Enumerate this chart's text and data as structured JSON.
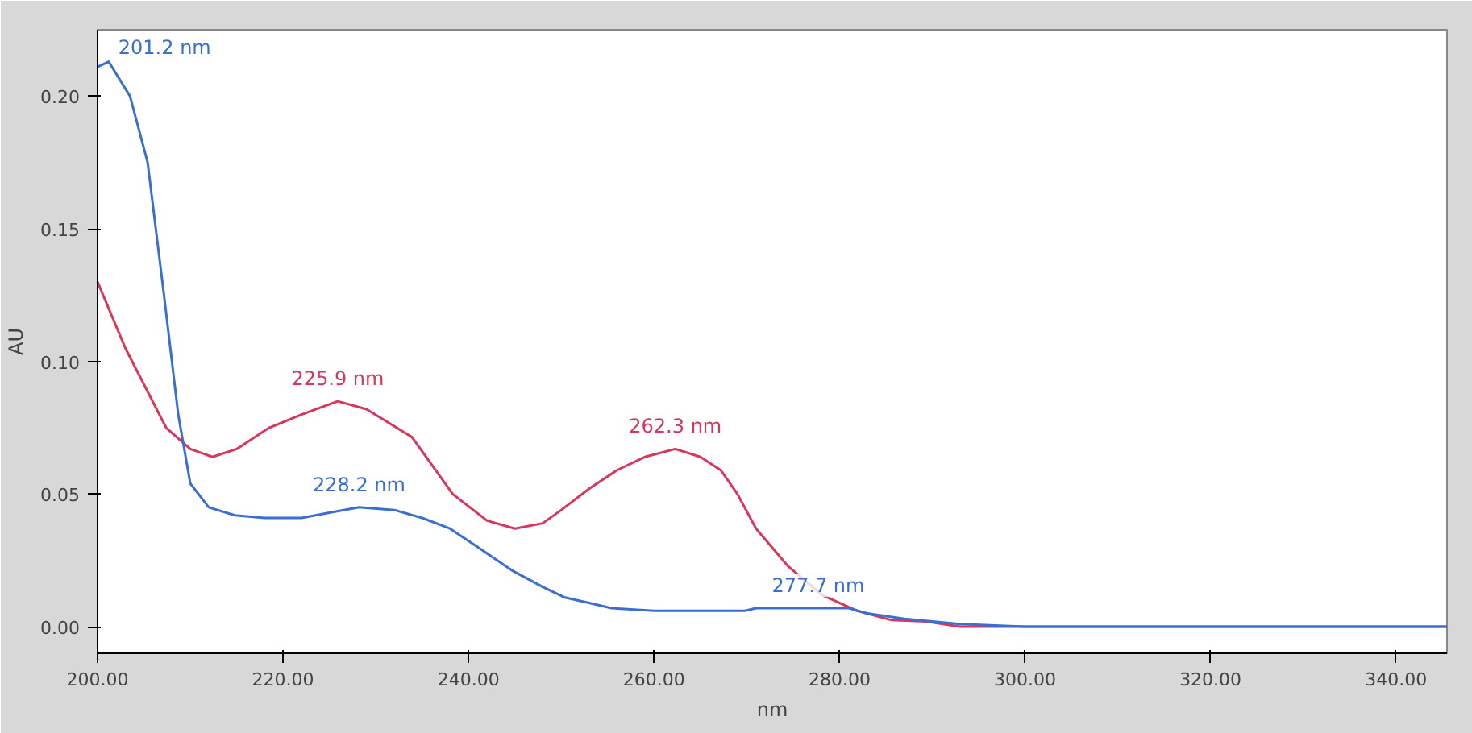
{
  "chart_data": {
    "type": "line",
    "xlabel": "nm",
    "ylabel": "AU",
    "series": [
      {
        "color": "#d8365a",
        "x": [
          200,
          203,
          207.4,
          210,
          212.4,
          215,
          218.5,
          222,
          225.9,
          229,
          233.9,
          238.3,
          242,
          245,
          248,
          250,
          253,
          256,
          259,
          262.3,
          265,
          267.2,
          269,
          271,
          274.4,
          278.1,
          281.9,
          285.6,
          289.3,
          293,
          300,
          320,
          345.5
        ],
        "values": [
          0.13,
          0.105,
          0.075,
          0.067,
          0.064,
          0.067,
          0.075,
          0.08,
          0.085,
          0.082,
          0.0715,
          0.05,
          0.04,
          0.037,
          0.039,
          0.044,
          0.052,
          0.059,
          0.064,
          0.067,
          0.064,
          0.059,
          0.05,
          0.037,
          0.023,
          0.012,
          0.006,
          0.0025,
          0.002,
          0.0,
          0.0,
          0.0,
          0.0
        ]
      },
      {
        "color": "#3a6fd0",
        "x": [
          200,
          201.2,
          203.5,
          205.4,
          207.2,
          208.7,
          210,
          212,
          214.8,
          218,
          222,
          225,
          228.2,
          232,
          235,
          238,
          241,
          244.8,
          248,
          250.4,
          253,
          255.4,
          260,
          265,
          269.8,
          271,
          277.7,
          281,
          283,
          287,
          290,
          293,
          300,
          320,
          345.5
        ],
        "values": [
          0.211,
          0.213,
          0.2,
          0.175,
          0.124,
          0.08,
          0.054,
          0.045,
          0.042,
          0.041,
          0.041,
          0.043,
          0.045,
          0.044,
          0.041,
          0.037,
          0.03,
          0.021,
          0.015,
          0.011,
          0.009,
          0.007,
          0.006,
          0.006,
          0.006,
          0.007,
          0.007,
          0.007,
          0.005,
          0.003,
          0.002,
          0.001,
          0.0,
          0.0,
          0.0
        ]
      }
    ],
    "annotations": [
      {
        "text": "201.2 nm",
        "x": 201.2,
        "y": 0.213
      },
      {
        "text": "225.9 nm",
        "x": 225.9,
        "y": 0.085
      },
      {
        "text": "228.2 nm",
        "x": 228.2,
        "y": 0.045
      },
      {
        "text": "262.3 nm",
        "x": 262.3,
        "y": 0.067
      },
      {
        "text": "277.7 nm",
        "x": 277.7,
        "y": 0.007
      }
    ],
    "xlim": [
      200,
      345.5
    ],
    "ylim": [
      -0.01,
      0.225
    ],
    "xticks": [
      {
        "value": 200,
        "label": "200.00"
      },
      {
        "value": 220,
        "label": "220.00"
      },
      {
        "value": 240,
        "label": "240.00"
      },
      {
        "value": 260,
        "label": "260.00"
      },
      {
        "value": 280,
        "label": "280.00"
      },
      {
        "value": 300,
        "label": "300.00"
      },
      {
        "value": 320,
        "label": "320.00"
      },
      {
        "value": 340,
        "label": "340.00"
      }
    ],
    "yticks": [
      {
        "value": 0,
        "label": "0.00"
      },
      {
        "value": 0.05,
        "label": "0.05"
      },
      {
        "value": 0.1,
        "label": "0.10"
      },
      {
        "value": 0.15,
        "label": "0.15"
      },
      {
        "value": 0.2,
        "label": "0.20"
      }
    ],
    "grid": false,
    "marker": "none",
    "line_style": "solid"
  }
}
